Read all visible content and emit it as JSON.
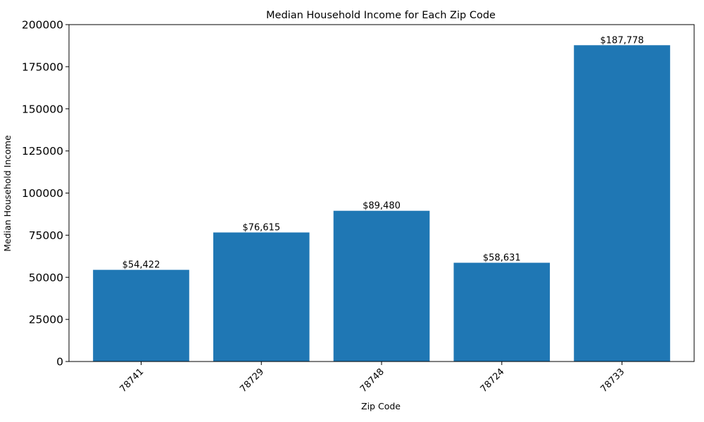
{
  "chart_data": {
    "type": "bar",
    "title": "Median Household Income for Each Zip Code",
    "xlabel": "Zip Code",
    "ylabel": "Median Household Income",
    "categories": [
      "78741",
      "78729",
      "78748",
      "78724",
      "78733"
    ],
    "values": [
      54422,
      76615,
      89480,
      58631,
      187778
    ],
    "data_labels": [
      "$54,422",
      "$76,615",
      "$89,480",
      "$58,631",
      "$187,778"
    ],
    "ylim": [
      0,
      200000
    ],
    "yticks": [
      0,
      25000,
      50000,
      75000,
      100000,
      125000,
      150000,
      175000,
      200000
    ],
    "ytick_labels": [
      "0",
      "25000",
      "50000",
      "75000",
      "100000",
      "125000",
      "150000",
      "175000",
      "200000"
    ],
    "grid": false,
    "bar_color": "#1f77b4"
  }
}
